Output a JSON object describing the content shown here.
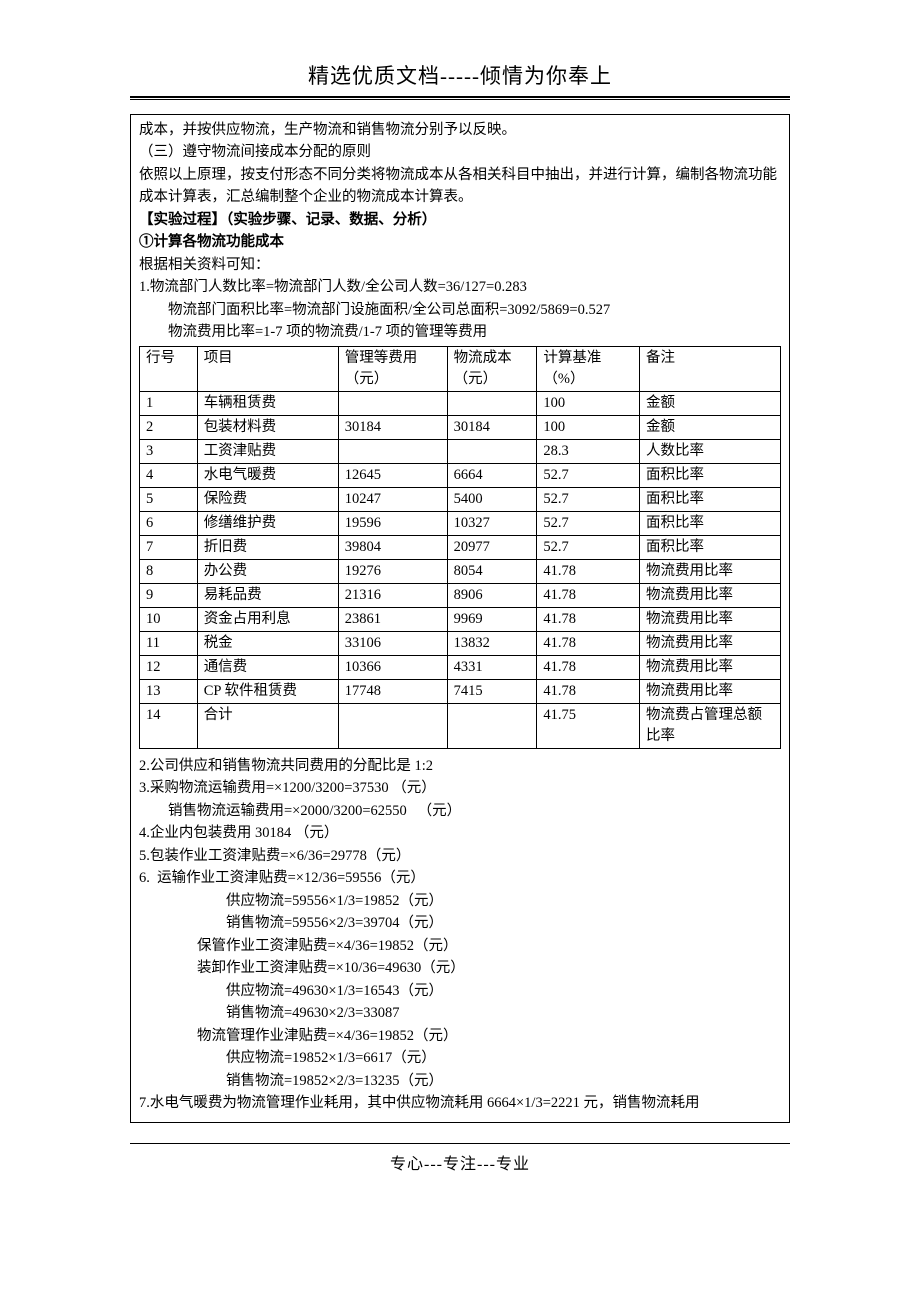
{
  "header": {
    "title": "精选优质文档-----倾情为你奉上"
  },
  "intro": {
    "line1": "成本，并按供应物流，生产物流和销售物流分别予以反映。",
    "line2": "（三）遵守物流间接成本分配的原则",
    "line3": "依照以上原理，按支付形态不同分类将物流成本从各相关科目中抽出，并进行计算，编制各物流功能成本计算表，汇总编制整个企业的物流成本计算表。",
    "exp_proc": "【实验过程】（实验步骤、记录、数据、分析）",
    "step1_title": "①计算各物流功能成本",
    "basis_intro": "根据相关资料可知：",
    "calc1": "1.物流部门人数比率=物流部门人数/全公司人数=36/127=0.283",
    "calc1b": "物流部门面积比率=物流部门设施面积/全公司总面积=3092/5869=0.527",
    "calc1c": "物流费用比率=1-7 项的物流费/1-7 项的管理等费用"
  },
  "table": {
    "head": {
      "rownum": "行号",
      "item": "项目",
      "mgmt": "管理等费用（元）",
      "log": "物流成本（元）",
      "basis": "计算基准（%）",
      "remark": "备注"
    },
    "rows": [
      {
        "n": "1",
        "item": "车辆租赁费",
        "mgmt": "",
        "log": "",
        "basis": "100",
        "remark": "金额"
      },
      {
        "n": "2",
        "item": "包装材料费",
        "mgmt": "30184",
        "log": "30184",
        "basis": "100",
        "remark": "金额"
      },
      {
        "n": "3",
        "item": "工资津贴费",
        "mgmt": "",
        "log": "",
        "basis": "28.3",
        "remark": "人数比率"
      },
      {
        "n": "4",
        "item": "水电气暖费",
        "mgmt": "12645",
        "log": "6664",
        "basis": "52.7",
        "remark": "面积比率"
      },
      {
        "n": "5",
        "item": "保险费",
        "mgmt": "10247",
        "log": "5400",
        "basis": "52.7",
        "remark": "面积比率"
      },
      {
        "n": "6",
        "item": "修缮维护费",
        "mgmt": "19596",
        "log": "10327",
        "basis": "52.7",
        "remark": "面积比率"
      },
      {
        "n": "7",
        "item": "折旧费",
        "mgmt": "39804",
        "log": "20977",
        "basis": "52.7",
        "remark": "面积比率"
      },
      {
        "n": "8",
        "item": "办公费",
        "mgmt": "19276",
        "log": "8054",
        "basis": "41.78",
        "remark": "物流费用比率"
      },
      {
        "n": "9",
        "item": "易耗品费",
        "mgmt": "21316",
        "log": "8906",
        "basis": "41.78",
        "remark": "物流费用比率"
      },
      {
        "n": "10",
        "item": "资金占用利息",
        "mgmt": "23861",
        "log": "9969",
        "basis": "41.78",
        "remark": "物流费用比率"
      },
      {
        "n": "11",
        "item": "税金",
        "mgmt": "33106",
        "log": "13832",
        "basis": "41.78",
        "remark": "物流费用比率"
      },
      {
        "n": "12",
        "item": "通信费",
        "mgmt": "10366",
        "log": "4331",
        "basis": "41.78",
        "remark": "物流费用比率"
      },
      {
        "n": "13",
        "item": "CP 软件租赁费",
        "mgmt": "17748",
        "log": "7415",
        "basis": "41.78",
        "remark": "物流费用比率"
      },
      {
        "n": "14",
        "item": "合计",
        "mgmt": "",
        "log": "",
        "basis": "41.75",
        "remark": "物流费占管理总额比率"
      }
    ]
  },
  "after": {
    "l2": "2.公司供应和销售物流共同费用的分配比是 1:2",
    "l3": "3.采购物流运输费用=×1200/3200=37530 （元）",
    "l3b": "销售物流运输费用=×2000/3200=62550   （元）",
    "l4": "4.企业内包装费用 30184 （元）",
    "l5": "5.包装作业工资津贴费=×6/36=29778（元）",
    "l6": "6.  运输作业工资津贴费=×12/36=59556（元）",
    "l6a": "供应物流=59556×1/3=19852（元）",
    "l6b": "销售物流=59556×2/3=39704（元）",
    "l6c": "保管作业工资津贴费=×4/36=19852（元）",
    "l6d": "装卸作业工资津贴费=×10/36=49630（元）",
    "l6e": "供应物流=49630×1/3=16543（元）",
    "l6f": "销售物流=49630×2/3=33087",
    "l6g": "物流管理作业津贴费=×4/36=19852（元）",
    "l6h": "供应物流=19852×1/3=6617（元）",
    "l6i": "销售物流=19852×2/3=13235（元）",
    "l7": "7.水电气暖费为物流管理作业耗用，其中供应物流耗用 6664×1/3=2221 元，销售物流耗用"
  },
  "footer": {
    "text": "专心---专注---专业"
  }
}
